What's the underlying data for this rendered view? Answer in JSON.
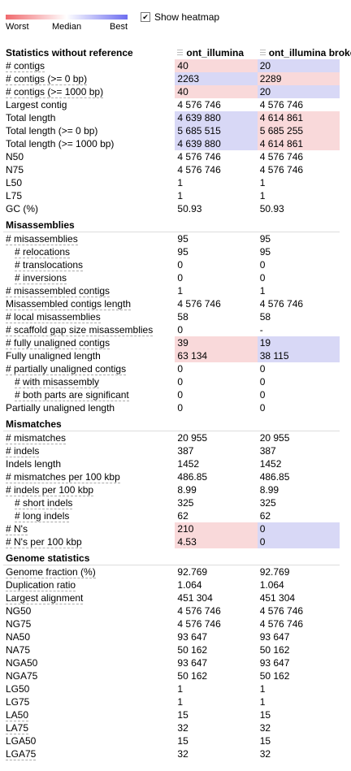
{
  "legend": {
    "worst": "Worst",
    "median": "Median",
    "best": "Best"
  },
  "heatmap": {
    "label": "Show heatmap",
    "checked": true
  },
  "columns": [
    "Statistics without reference",
    "ont_illumina",
    "ont_illumina broken"
  ],
  "colors": {
    "worst": "#f9d9da",
    "best": "#d8d8f6"
  },
  "rows": [
    {
      "label": "# contigs",
      "v1": "40",
      "v2": "20",
      "h1": "r",
      "h2": "b",
      "dash": true
    },
    {
      "label": "# contigs (>= 0 bp)",
      "v1": "2263",
      "v2": "2289",
      "h1": "b",
      "h2": "r",
      "dash": true
    },
    {
      "label": "# contigs (>= 1000 bp)",
      "v1": "40",
      "v2": "20",
      "h1": "r",
      "h2": "b",
      "dash": true
    },
    {
      "label": "Largest contig",
      "v1": "4 576 746",
      "v2": "4 576 746"
    },
    {
      "label": "Total length",
      "v1": "4 639 880",
      "v2": "4 614 861",
      "h1": "b",
      "h2": "r"
    },
    {
      "label": "Total length (>= 0 bp)",
      "v1": "5 685 515",
      "v2": "5 685 255",
      "h1": "b",
      "h2": "r"
    },
    {
      "label": "Total length (>= 1000 bp)",
      "v1": "4 639 880",
      "v2": "4 614 861",
      "h1": "b",
      "h2": "r"
    },
    {
      "label": "N50",
      "v1": "4 576 746",
      "v2": "4 576 746"
    },
    {
      "label": "N75",
      "v1": "4 576 746",
      "v2": "4 576 746"
    },
    {
      "label": "L50",
      "v1": "1",
      "v2": "1"
    },
    {
      "label": "L75",
      "v1": "1",
      "v2": "1"
    },
    {
      "label": "GC (%)",
      "v1": "50.93",
      "v2": "50.93"
    },
    {
      "section": "Misassemblies"
    },
    {
      "label": "# misassemblies",
      "v1": "95",
      "v2": "95",
      "dash": true
    },
    {
      "label": "# relocations",
      "v1": "95",
      "v2": "95",
      "dash": true,
      "indent": true
    },
    {
      "label": "# translocations",
      "v1": "0",
      "v2": "0",
      "dash": true,
      "indent": true
    },
    {
      "label": "# inversions",
      "v1": "0",
      "v2": "0",
      "dash": true,
      "indent": true
    },
    {
      "label": "# misassembled contigs",
      "v1": "1",
      "v2": "1",
      "dash": true
    },
    {
      "label": "Misassembled contigs length",
      "v1": "4 576 746",
      "v2": "4 576 746",
      "dash": true
    },
    {
      "label": "# local misassemblies",
      "v1": "58",
      "v2": "58",
      "dash": true
    },
    {
      "label": "# scaffold gap size misassemblies",
      "v1": "0",
      "v2": "-",
      "dash": true
    },
    {
      "label": "# fully unaligned contigs",
      "v1": "39",
      "v2": "19",
      "h1": "r",
      "h2": "b",
      "dash": true
    },
    {
      "label": "Fully unaligned length",
      "v1": "63 134",
      "v2": "38 115",
      "h1": "r",
      "h2": "b"
    },
    {
      "label": "# partially unaligned contigs",
      "v1": "0",
      "v2": "0",
      "dash": true
    },
    {
      "label": "# with misassembly",
      "v1": "0",
      "v2": "0",
      "dash": true,
      "indent": true
    },
    {
      "label": "# both parts are significant",
      "v1": "0",
      "v2": "0",
      "dash": true,
      "indent": true
    },
    {
      "label": "Partially unaligned length",
      "v1": "0",
      "v2": "0"
    },
    {
      "section": "Mismatches"
    },
    {
      "label": "# mismatches",
      "v1": "20 955",
      "v2": "20 955",
      "dash": true
    },
    {
      "label": "# indels",
      "v1": "387",
      "v2": "387",
      "dash": true
    },
    {
      "label": "Indels length",
      "v1": "1452",
      "v2": "1452"
    },
    {
      "label": "# mismatches per 100 kbp",
      "v1": "486.85",
      "v2": "486.85",
      "dash": true
    },
    {
      "label": "# indels per 100 kbp",
      "v1": "8.99",
      "v2": "8.99",
      "dash": true
    },
    {
      "label": "# short indels",
      "v1": "325",
      "v2": "325",
      "dash": true,
      "indent": true
    },
    {
      "label": "# long indels",
      "v1": "62",
      "v2": "62",
      "dash": true,
      "indent": true
    },
    {
      "label": "# N's",
      "v1": "210",
      "v2": "0",
      "h1": "r",
      "h2": "b",
      "dash": true
    },
    {
      "label": "# N's per 100 kbp",
      "v1": "4.53",
      "v2": "0",
      "h1": "r",
      "h2": "b",
      "dash": true
    },
    {
      "section": "Genome statistics"
    },
    {
      "label": "Genome fraction (%)",
      "v1": "92.769",
      "v2": "92.769",
      "dash": true
    },
    {
      "label": "Duplication ratio",
      "v1": "1.064",
      "v2": "1.064",
      "dash": true
    },
    {
      "label": "Largest alignment",
      "v1": "451 304",
      "v2": "451 304",
      "dash": true
    },
    {
      "label": "NG50",
      "v1": "4 576 746",
      "v2": "4 576 746"
    },
    {
      "label": "NG75",
      "v1": "4 576 746",
      "v2": "4 576 746"
    },
    {
      "label": "NA50",
      "v1": "93 647",
      "v2": "93 647"
    },
    {
      "label": "NA75",
      "v1": "50 162",
      "v2": "50 162"
    },
    {
      "label": "NGA50",
      "v1": "93 647",
      "v2": "93 647"
    },
    {
      "label": "NGA75",
      "v1": "50 162",
      "v2": "50 162"
    },
    {
      "label": "LG50",
      "v1": "1",
      "v2": "1"
    },
    {
      "label": "LG75",
      "v1": "1",
      "v2": "1"
    },
    {
      "label": "LA50",
      "v1": "15",
      "v2": "15",
      "dash": true
    },
    {
      "label": "LA75",
      "v1": "32",
      "v2": "32",
      "dash": true
    },
    {
      "label": "LGA50",
      "v1": "15",
      "v2": "15"
    },
    {
      "label": "LGA75",
      "v1": "32",
      "v2": "32",
      "dash": true
    }
  ]
}
